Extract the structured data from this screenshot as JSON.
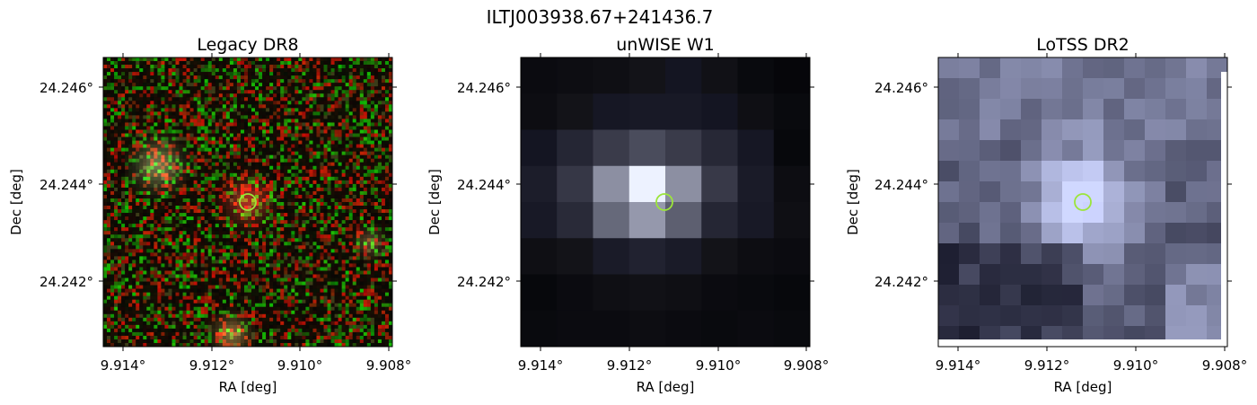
{
  "figure": {
    "title": "ILTJ003938.67+241436.7",
    "marker_color": "#9be53a"
  },
  "panels": [
    {
      "title": "Legacy DR8",
      "xlabel": "RA [deg]",
      "ylabel": "Dec [deg]",
      "xticks": [
        "9.914°",
        "9.912°",
        "9.910°",
        "9.908°"
      ],
      "yticks": [
        "24.246°",
        "24.244°",
        "24.242°"
      ]
    },
    {
      "title": "unWISE W1",
      "xlabel": "RA [deg]",
      "ylabel": "Dec [deg]",
      "xticks": [
        "9.914°",
        "9.912°",
        "9.910°",
        "9.908°"
      ],
      "yticks": [
        "24.246°",
        "24.244°",
        "24.242°"
      ]
    },
    {
      "title": "LoTSS DR2",
      "xlabel": "RA [deg]",
      "ylabel": "Dec [deg]",
      "xticks": [
        "9.914°",
        "9.912°",
        "9.910°",
        "9.908°"
      ],
      "yticks": [
        "24.246°",
        "24.244°",
        "24.242°"
      ]
    }
  ]
}
